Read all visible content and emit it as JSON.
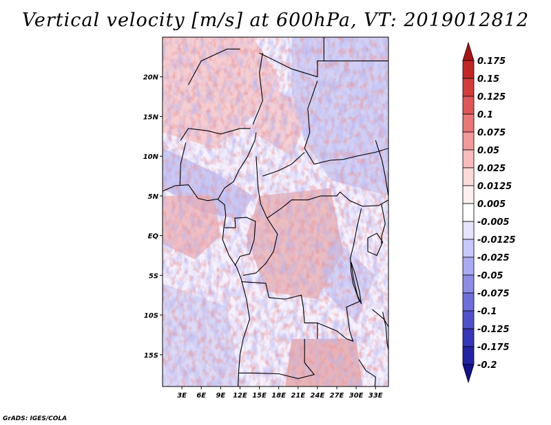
{
  "title": "Vertical velocity [m/s] at 600hPa, VT: 2019012812",
  "credit": "GrADS: IGES/COLA",
  "map": {
    "lon_range": [
      0,
      35
    ],
    "lat_range": [
      -19,
      25
    ],
    "lon_ticks": [
      {
        "value": 3,
        "label": "3E"
      },
      {
        "value": 6,
        "label": "6E"
      },
      {
        "value": 9,
        "label": "9E"
      },
      {
        "value": 12,
        "label": "12E"
      },
      {
        "value": 15,
        "label": "15E"
      },
      {
        "value": 18,
        "label": "18E"
      },
      {
        "value": 21,
        "label": "21E"
      },
      {
        "value": 24,
        "label": "24E"
      },
      {
        "value": 27,
        "label": "27E"
      },
      {
        "value": 30,
        "label": "30E"
      },
      {
        "value": 33,
        "label": "33E"
      }
    ],
    "lat_ticks": [
      {
        "value": 20,
        "label": "20N"
      },
      {
        "value": 15,
        "label": "15N"
      },
      {
        "value": 10,
        "label": "10N"
      },
      {
        "value": 5,
        "label": "5N"
      },
      {
        "value": 0,
        "label": "EQ"
      },
      {
        "value": -5,
        "label": "5S"
      },
      {
        "value": -10,
        "label": "10S"
      },
      {
        "value": -15,
        "label": "15S"
      }
    ]
  },
  "colorbar": {
    "labels": [
      "0.175",
      "0.15",
      "0.125",
      "0.1",
      "0.075",
      "0.05",
      "0.025",
      "0.0125",
      "0.005",
      "-0.005",
      "-0.0125",
      "-0.025",
      "-0.05",
      "-0.075",
      "-0.1",
      "-0.125",
      "-0.175",
      "-0.2"
    ],
    "colors": [
      "#a81414",
      "#c42626",
      "#d43c3c",
      "#e05656",
      "#ea7676",
      "#f29a9a",
      "#f8bcbc",
      "#fcdada",
      "#fff0f0",
      "#ffffff",
      "#e4e4ff",
      "#c8c8fa",
      "#aaaaf2",
      "#8c8ce6",
      "#6e6edc",
      "#5050cc",
      "#3636b8",
      "#2222a4",
      "#12128a"
    ]
  }
}
